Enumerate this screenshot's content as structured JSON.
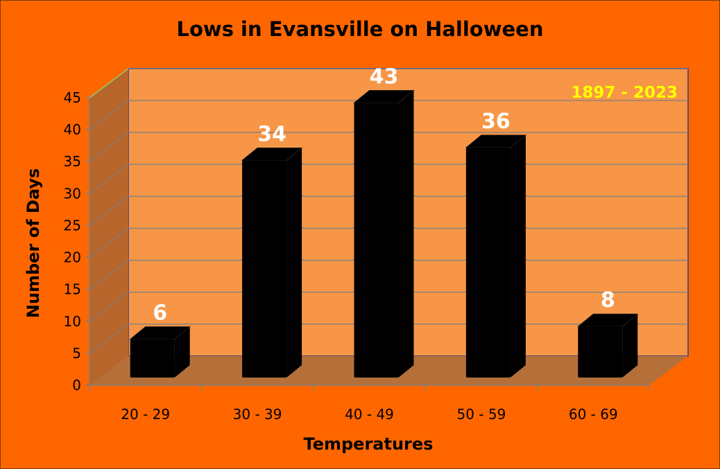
{
  "chart_data": {
    "type": "bar",
    "title": "Lows in Evansville on Halloween",
    "xlabel": "Temperatures",
    "ylabel": "Number of Days",
    "annotation": "1897 - 2023",
    "categories": [
      "20 - 29",
      "30 - 39",
      "40 - 49",
      "50 - 59",
      "60 - 69"
    ],
    "values": [
      6,
      34,
      43,
      36,
      8
    ],
    "data_labels": [
      "6",
      "34",
      "43",
      "36",
      "8"
    ],
    "y_ticks": [
      "0",
      "5",
      "10",
      "15",
      "20",
      "25",
      "30",
      "35",
      "40",
      "45"
    ],
    "ylim": [
      0,
      45
    ],
    "grid": true,
    "legend": "none",
    "colors": {
      "background": "#ff6600",
      "back_wall": "#f79646",
      "side_wall": "#b7652b",
      "floor": "#b5703a",
      "bar": "#000000",
      "data_label": "#ffffff",
      "annotation": "#ffff00",
      "gridline": "#7f7f7f",
      "wall_border": "#604a7b"
    }
  }
}
